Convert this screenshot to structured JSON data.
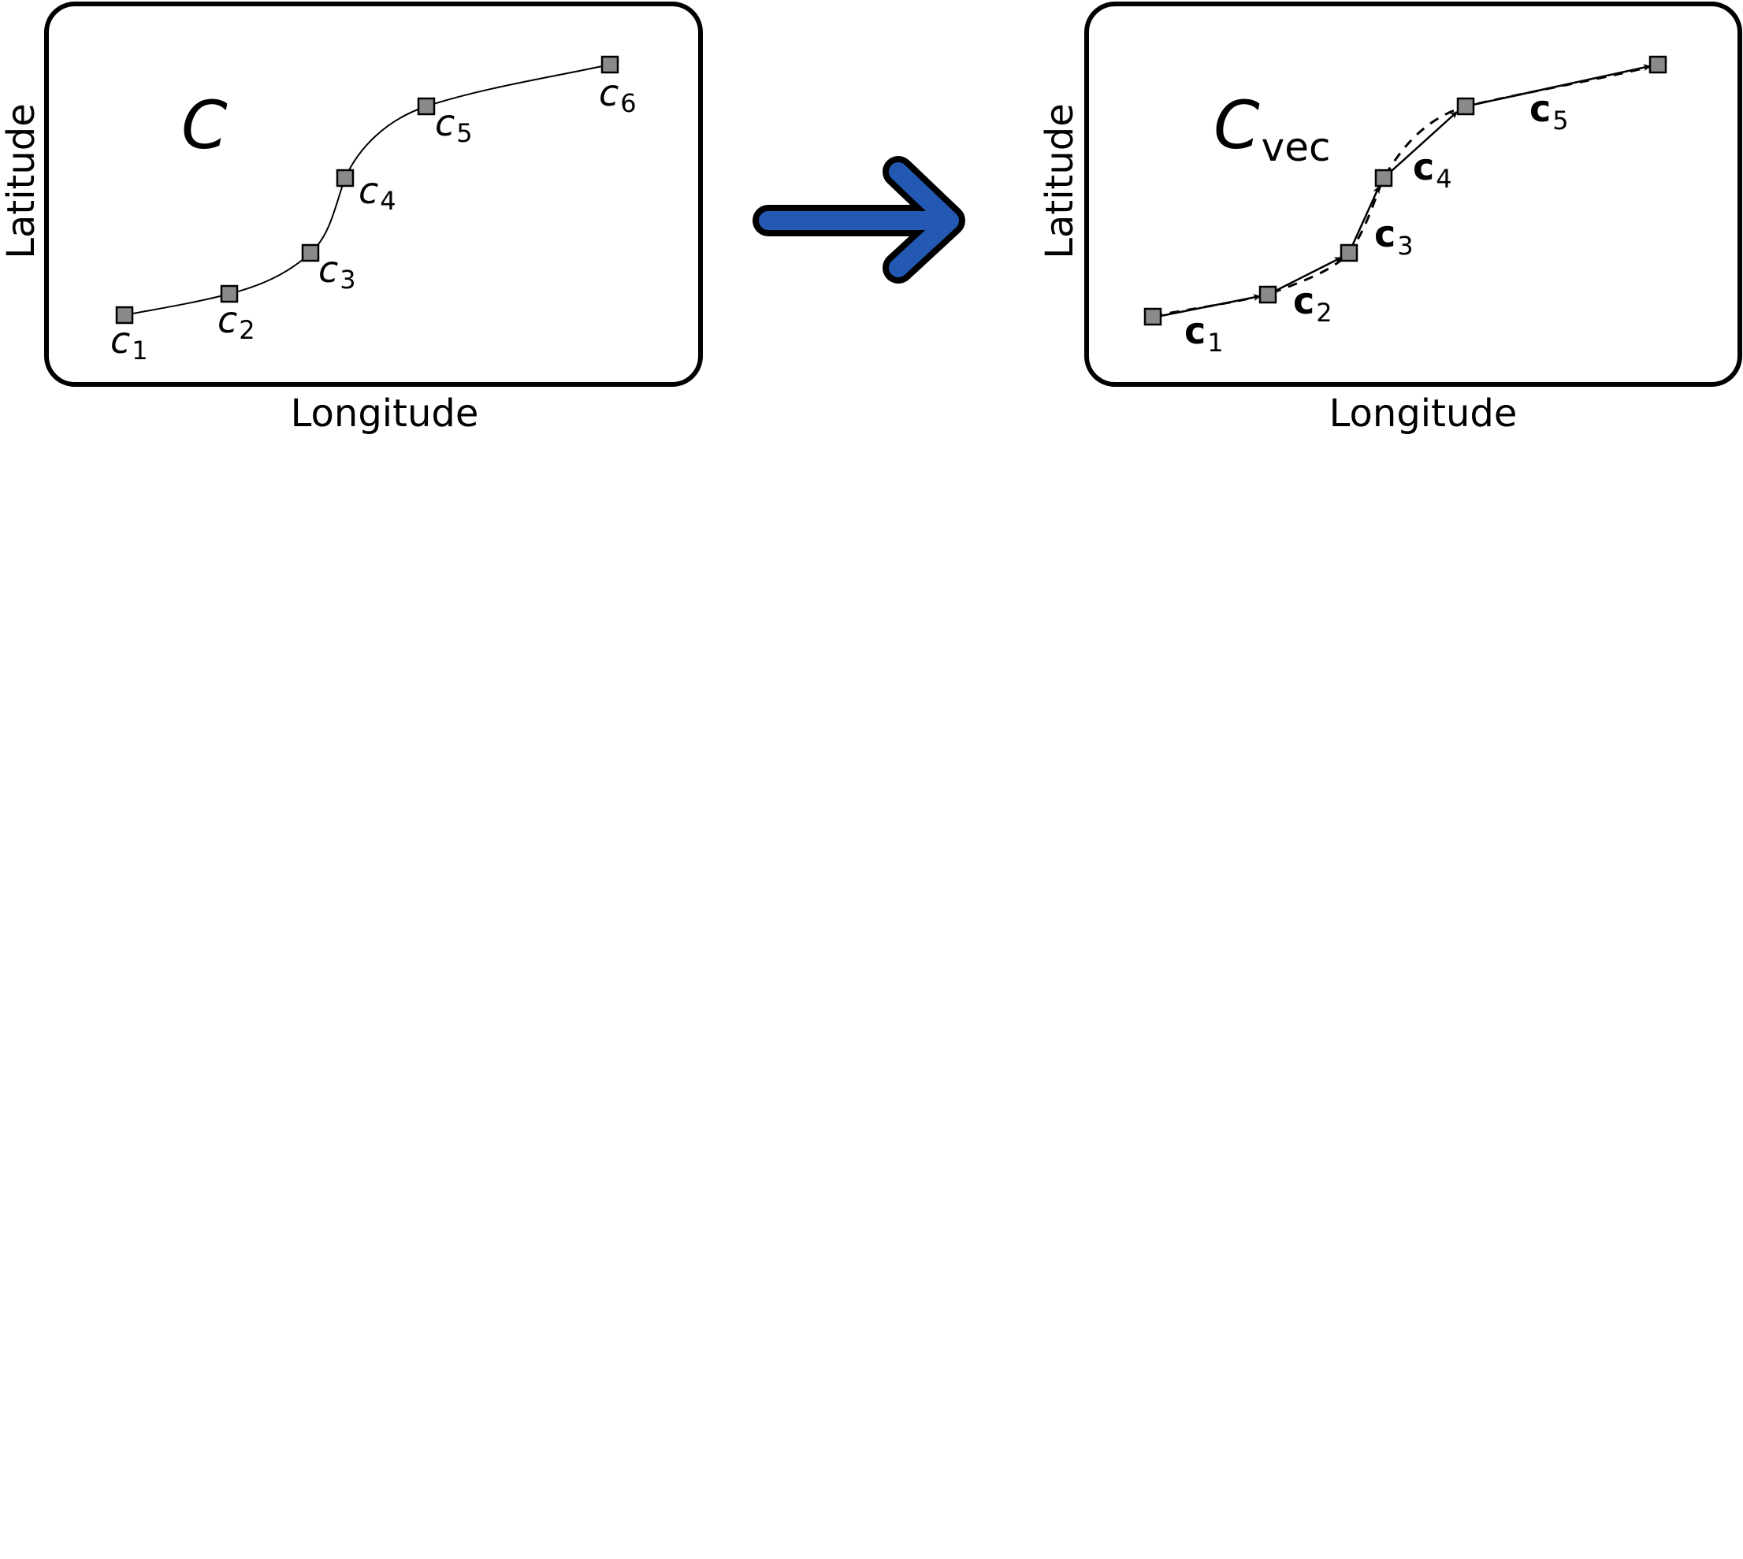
{
  "colors": {
    "arrow_fill": "#2358b3",
    "node_fill": "#8a8a8a",
    "frame": "#000000"
  },
  "left_panel": {
    "title": "C",
    "xlabel": "Longitude",
    "ylabel": "Latitude",
    "points": [
      {
        "name": "c",
        "sub": "1"
      },
      {
        "name": "c",
        "sub": "2"
      },
      {
        "name": "c",
        "sub": "3"
      },
      {
        "name": "c",
        "sub": "4"
      },
      {
        "name": "c",
        "sub": "5"
      },
      {
        "name": "c",
        "sub": "6"
      }
    ]
  },
  "transform_arrow": {
    "icon": "right-arrow-icon"
  },
  "right_panel": {
    "title": "C",
    "title_sub": "vec",
    "xlabel": "Longitude",
    "ylabel": "Latitude",
    "vectors": [
      {
        "name": "c",
        "sub": "1"
      },
      {
        "name": "c",
        "sub": "2"
      },
      {
        "name": "c",
        "sub": "3"
      },
      {
        "name": "c",
        "sub": "4"
      },
      {
        "name": "c",
        "sub": "5"
      }
    ]
  }
}
